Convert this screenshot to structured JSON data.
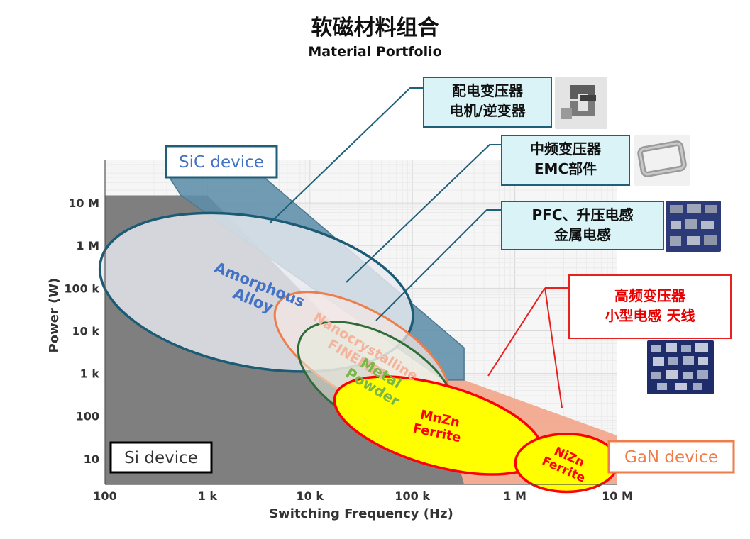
{
  "title": "软磁材料组合",
  "subtitle": "Material Portfolio",
  "chart_data": {
    "type": "area",
    "xlabel": "Switching Frequency (Hz)",
    "ylabel": "Power (W)",
    "x_scale": "log",
    "y_scale": "log",
    "xlim": [
      100,
      10000000
    ],
    "ylim": [
      2.5,
      100000000
    ],
    "x_ticks": [
      {
        "value": 100,
        "label": "100"
      },
      {
        "value": 1000,
        "label": "1 k"
      },
      {
        "value": 10000,
        "label": "10 k"
      },
      {
        "value": 100000,
        "label": "100 k"
      },
      {
        "value": 1000000,
        "label": "1 M"
      },
      {
        "value": 10000000,
        "label": "10 M"
      }
    ],
    "y_ticks": [
      {
        "value": 10,
        "label": "10"
      },
      {
        "value": 100,
        "label": "100"
      },
      {
        "value": 1000,
        "label": "1 k"
      },
      {
        "value": 10000,
        "label": "10 k"
      },
      {
        "value": 100000,
        "label": "100 k"
      },
      {
        "value": 1000000,
        "label": "1 M"
      },
      {
        "value": 10000000,
        "label": "10 M"
      }
    ],
    "grid": true,
    "device_regions": [
      {
        "label": "Si device",
        "color": "#7f7f7f",
        "polygon": [
          [
            100,
            15000000
          ],
          [
            1000,
            15000000
          ],
          [
            250000,
            20
          ],
          [
            320000,
            2.5
          ],
          [
            100,
            2.5
          ]
        ]
      },
      {
        "label": "SiC device",
        "color": "#5e8ea8",
        "polygon": [
          [
            400,
            50000000
          ],
          [
            3200,
            50000000
          ],
          [
            320000,
            4000
          ],
          [
            320000,
            700
          ],
          [
            200000,
            700
          ],
          [
            550,
            15000000
          ]
        ]
      },
      {
        "label": "GaN device",
        "color": "#f2a58a",
        "polygon": [
          [
            70000,
            700
          ],
          [
            320000,
            700
          ],
          [
            10000000,
            35
          ],
          [
            10000000,
            2.5
          ],
          [
            320000,
            2.5
          ]
        ]
      }
    ],
    "materials": [
      {
        "label": [
          "Amorphous",
          "Alloy"
        ],
        "color": "#4472c4",
        "center": [
          3000,
          80000
        ],
        "rx_decades": 1.55,
        "ry_decades": 1.75,
        "rotation": 11
      },
      {
        "label": [
          "Nanocrystalline",
          "FINEMET"
        ],
        "color": "#f4b39c",
        "center": [
          32000,
          3000
        ],
        "rx_decades": 0.95,
        "ry_decades": 1.0,
        "rotation": 30
      },
      {
        "label": [
          "Metal",
          "Powder"
        ],
        "color": "#77b33a",
        "center": [
          45000,
          700
        ],
        "rx_decades": 0.85,
        "ry_decades": 1.05,
        "rotation": 30
      },
      {
        "label": [
          "MnZn",
          "Ferrite"
        ],
        "color": "#ff0000",
        "center": [
          180000,
          60
        ],
        "rx_decades": 1.05,
        "ry_decades": 0.95,
        "rotation": 16
      },
      {
        "label": [
          "NiZn",
          "Ferrite"
        ],
        "color": "#ff0000",
        "center": [
          3200000,
          8
        ],
        "rx_decades": 0.5,
        "ry_decades": 0.68,
        "rotation": 0
      }
    ]
  },
  "callouts": [
    {
      "lines": [
        "配电变压器",
        "电机/逆变器"
      ],
      "photo": "cut-core-photo"
    },
    {
      "lines": [
        "中频变压器",
        "EMC部件"
      ],
      "photo": "rectangular-core-photo"
    },
    {
      "lines": [
        "PFC、升压电感",
        "金属电感"
      ],
      "photo": "metal-inductor-photo"
    },
    {
      "lines": [
        "高频变压器",
        "小型电感 天线"
      ],
      "photo": "ferrite-parts-photo"
    }
  ],
  "colors": {
    "callout_border": "#1f5f78",
    "callout_fill": "#d9f3f7",
    "accent_red": "#e82020"
  }
}
